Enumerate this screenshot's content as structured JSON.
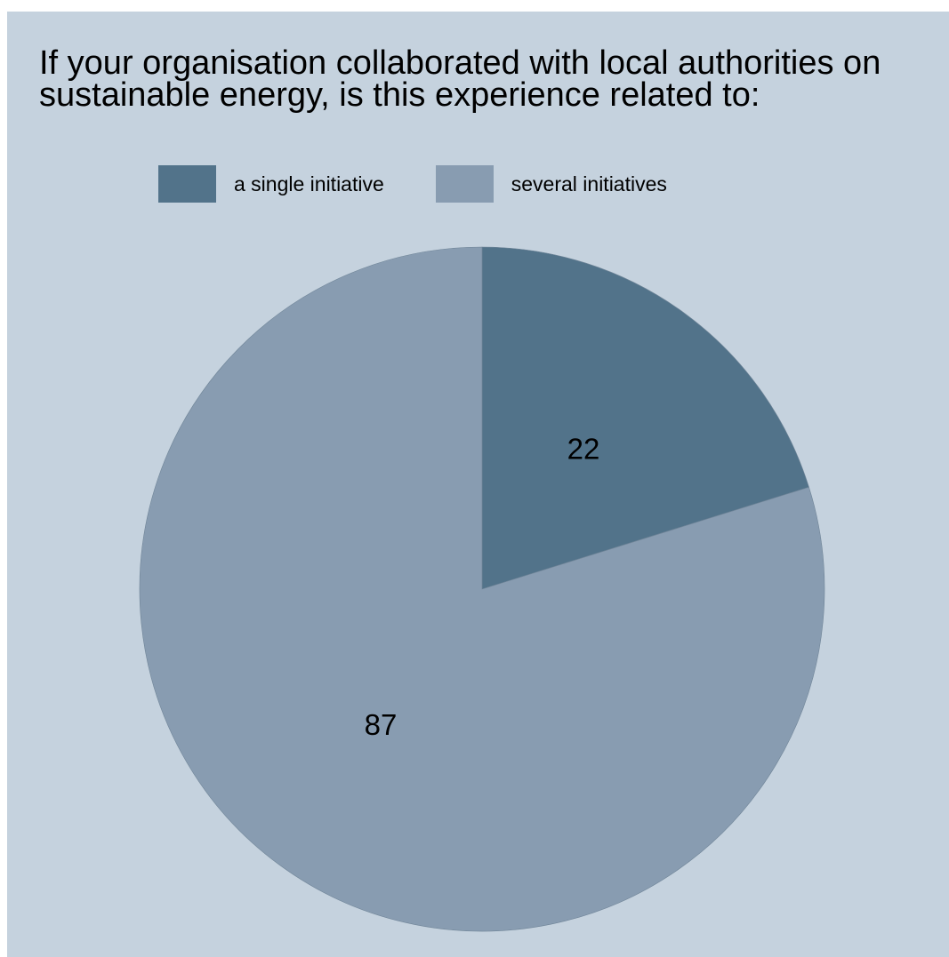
{
  "chart_data": {
    "type": "pie",
    "title": "If your organisation collaborated with local authorities on\nsustainable energy, is this experience related to:",
    "categories": [
      "a single initiative",
      "several initiatives"
    ],
    "values": [
      22,
      87
    ],
    "data_labels": [
      "22",
      "87"
    ],
    "colors": [
      "#52738a",
      "#889cb1"
    ],
    "background_color": "#c5d2de",
    "legend": "top",
    "start_angle": "12 o'clock",
    "direction": "clockwise"
  }
}
